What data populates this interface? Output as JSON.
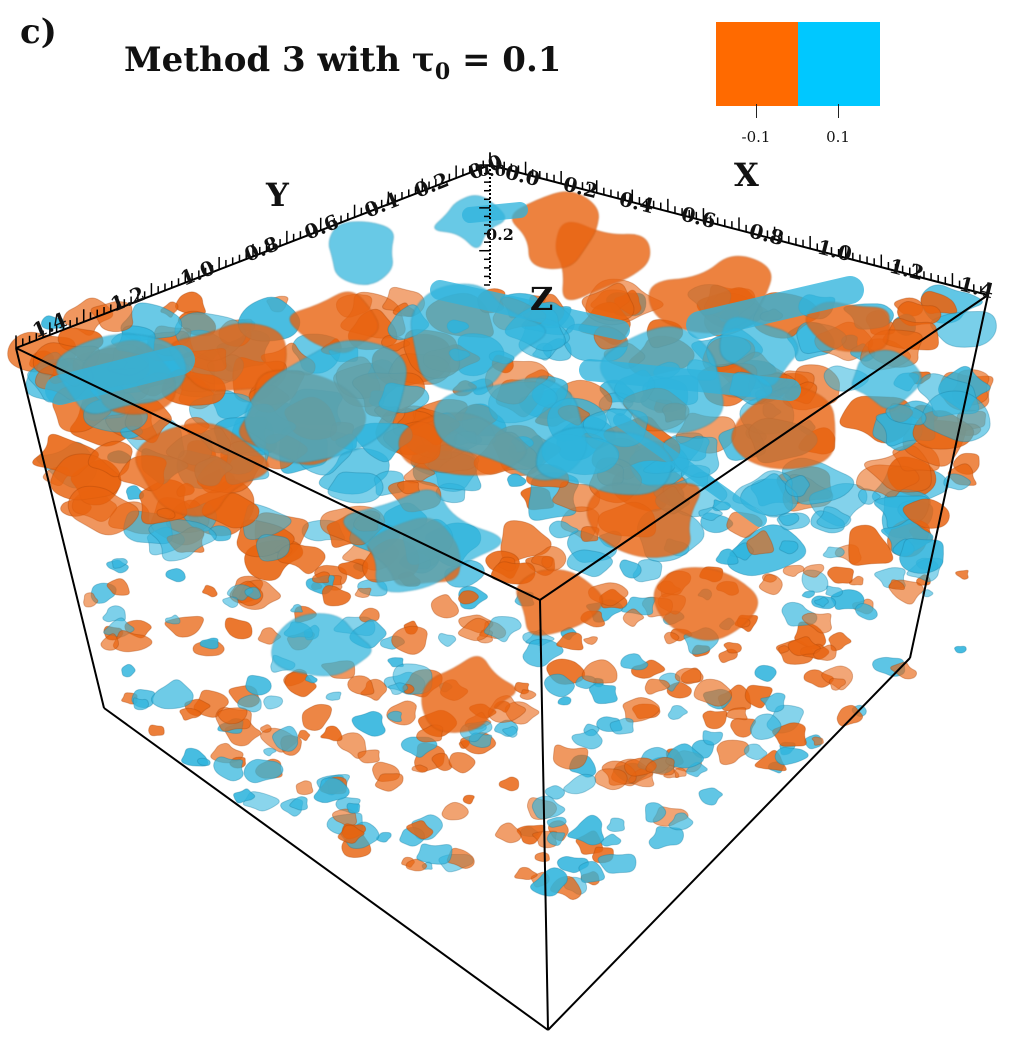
{
  "panel_label": "c)",
  "title": {
    "prefix": "Method 3 with ",
    "symbol": "τ",
    "subscript": "0",
    "suffix": " = 0.1"
  },
  "legend": {
    "items": [
      {
        "label": "-0.1",
        "color": "#ff6a00"
      },
      {
        "label": "0.1",
        "color": "#00c8ff"
      }
    ]
  },
  "axes": {
    "x": {
      "title": "X",
      "ticks": [
        "0.0",
        "0.2",
        "0.4",
        "0.6",
        "0.8",
        "1.0",
        "1.2",
        "1.4"
      ]
    },
    "y": {
      "title": "Y",
      "ticks": [
        "0.0",
        "0.2",
        "0.4",
        "0.6",
        "0.8",
        "1.0",
        "1.2",
        "1.4"
      ]
    },
    "z": {
      "title": "Z",
      "ticks": [
        "0.0",
        "0.2"
      ]
    }
  },
  "colors": {
    "negative_isosurface": "#e8630f",
    "positive_isosurface": "#2fb4dd",
    "box_edges": "#000000"
  }
}
